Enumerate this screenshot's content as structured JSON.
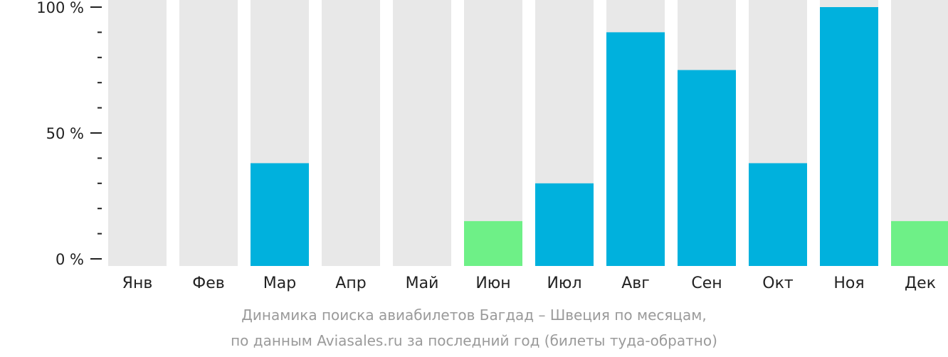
{
  "chart_data": {
    "type": "bar",
    "categories": [
      "Янв",
      "Фев",
      "Мар",
      "Апр",
      "Май",
      "Июн",
      "Июл",
      "Авг",
      "Сен",
      "Окт",
      "Ноя",
      "Дек"
    ],
    "values": [
      0,
      0,
      38,
      0,
      0,
      15,
      30,
      90,
      75,
      38,
      100,
      15
    ],
    "highlight": [
      "none",
      "none",
      "normal",
      "none",
      "none",
      "low",
      "normal",
      "normal",
      "normal",
      "normal",
      "normal",
      "low"
    ],
    "ylim": [
      0,
      100
    ],
    "yticks": [
      {
        "value": 0,
        "label": "0 %"
      },
      {
        "value": 50,
        "label": "50 %"
      },
      {
        "value": 100,
        "label": "100 %"
      }
    ],
    "minor_ticks": [
      10,
      20,
      30,
      40,
      60,
      70,
      80,
      90
    ],
    "colors": {
      "background_bar": "#e8e8e8",
      "normal": "#00b1dd",
      "low": "#6ef087",
      "axis": "#222222"
    }
  },
  "caption": {
    "line1": "Динамика поиска авиабилетов Багдад – Швеция по месяцам,",
    "line2": "по данным Aviasales.ru за последний год (билеты туда-обратно)"
  }
}
